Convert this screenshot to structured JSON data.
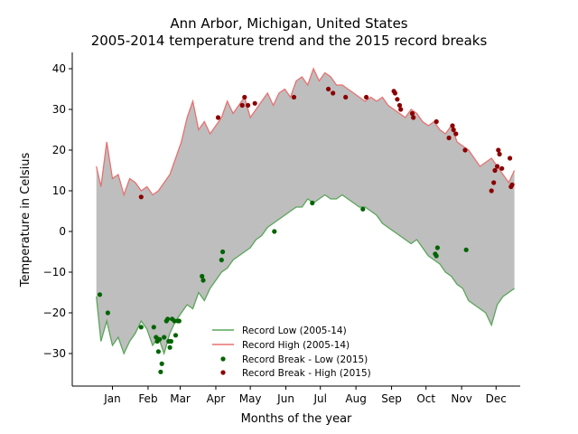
{
  "chart_data": {
    "type": "line",
    "title_line1": "Ann Arbor, Michigan, United States",
    "title_line2": "2005-2014 temperature trend and the 2015 record breaks",
    "xlabel": "Months of the year",
    "ylabel": "Temperature in Celsius",
    "xlim": [
      -20,
      370
    ],
    "ylim": [
      -38,
      44
    ],
    "x_ticks": [
      {
        "day": 15,
        "label": "Jan"
      },
      {
        "day": 46,
        "label": "Feb"
      },
      {
        "day": 74,
        "label": "Mar"
      },
      {
        "day": 105,
        "label": "Apr"
      },
      {
        "day": 135,
        "label": "May"
      },
      {
        "day": 166,
        "label": "Jun"
      },
      {
        "day": 196,
        "label": "Jul"
      },
      {
        "day": 227,
        "label": "Aug"
      },
      {
        "day": 258,
        "label": "Sep"
      },
      {
        "day": 288,
        "label": "Oct"
      },
      {
        "day": 319,
        "label": "Nov"
      },
      {
        "day": 349,
        "label": "Dec"
      }
    ],
    "y_ticks": [
      -30,
      -20,
      -10,
      0,
      10,
      20,
      30,
      40
    ],
    "fill_between": {
      "color": "#bebebe"
    },
    "series": [
      {
        "name": "Record Low (2005-14)",
        "color": "#5aa55a",
        "kind": "line",
        "x": [
          1,
          5,
          10,
          15,
          20,
          25,
          30,
          35,
          40,
          45,
          50,
          55,
          60,
          65,
          70,
          75,
          80,
          85,
          90,
          95,
          100,
          105,
          110,
          115,
          120,
          125,
          130,
          135,
          140,
          145,
          150,
          155,
          160,
          165,
          170,
          175,
          180,
          185,
          190,
          195,
          200,
          205,
          210,
          215,
          220,
          225,
          230,
          235,
          240,
          245,
          250,
          255,
          260,
          265,
          270,
          275,
          280,
          285,
          290,
          295,
          300,
          305,
          310,
          315,
          320,
          325,
          330,
          335,
          340,
          345,
          350,
          355,
          360,
          365
        ],
        "y": [
          -16,
          -27,
          -22,
          -28,
          -26,
          -30,
          -27,
          -25,
          -22,
          -24,
          -28,
          -26,
          -30,
          -25,
          -22,
          -20,
          -18,
          -19,
          -15,
          -17,
          -14,
          -12,
          -10,
          -9,
          -7,
          -6,
          -5,
          -4,
          -2,
          -1,
          1,
          2,
          3,
          4,
          5,
          6,
          6,
          8,
          7,
          8,
          9,
          8,
          8,
          9,
          8,
          7,
          6,
          6,
          5,
          4,
          2,
          1,
          0,
          -1,
          -2,
          -3,
          -2,
          -4,
          -6,
          -7,
          -8,
          -10,
          -11,
          -13,
          -14,
          -17,
          -18,
          -19,
          -20,
          -23,
          -18,
          -16,
          -15,
          -14
        ]
      },
      {
        "name": "Record High (2005-14)",
        "color": "#e87070",
        "kind": "line",
        "x": [
          1,
          5,
          10,
          15,
          20,
          25,
          30,
          35,
          40,
          45,
          50,
          55,
          60,
          65,
          70,
          75,
          80,
          85,
          90,
          95,
          100,
          105,
          110,
          115,
          120,
          125,
          130,
          135,
          140,
          145,
          150,
          155,
          160,
          165,
          170,
          175,
          180,
          185,
          190,
          195,
          200,
          205,
          210,
          215,
          220,
          225,
          230,
          235,
          240,
          245,
          250,
          255,
          260,
          265,
          270,
          275,
          280,
          285,
          290,
          295,
          300,
          305,
          310,
          315,
          320,
          325,
          330,
          335,
          340,
          345,
          350,
          355,
          360,
          365
        ],
        "y": [
          16,
          11,
          22,
          13,
          14,
          9,
          13,
          12,
          10,
          11,
          9,
          10,
          12,
          14,
          18,
          22,
          28,
          32,
          25,
          27,
          24,
          26,
          28,
          32,
          29,
          31,
          33,
          28,
          30,
          32,
          34,
          31,
          34,
          35,
          33,
          37,
          38,
          36,
          40,
          37,
          39,
          38,
          36,
          36,
          35,
          34,
          33,
          32,
          33,
          32,
          33,
          31,
          30,
          29,
          28,
          30,
          29,
          27,
          26,
          27,
          25,
          24,
          26,
          22,
          21,
          20,
          18,
          16,
          17,
          18,
          16,
          14,
          12,
          15
        ]
      },
      {
        "name": "Record Break - Low (2015)",
        "color": "#006400",
        "kind": "scatter",
        "x": [
          4,
          11,
          40,
          51,
          53,
          54,
          55,
          56,
          57,
          58,
          60,
          62,
          63,
          64,
          65,
          66,
          67,
          69,
          70,
          72,
          73,
          93,
          94,
          110,
          111,
          156,
          189,
          233,
          296,
          297,
          298,
          323
        ],
        "y": [
          -15.5,
          -20,
          -23.5,
          -23.5,
          -26,
          -27,
          -29.5,
          -26.5,
          -34.5,
          -32.5,
          -26,
          -22,
          -21.5,
          -27,
          -28.5,
          -27,
          -21.5,
          -22,
          -25.5,
          -22,
          -22,
          -11,
          -12,
          -7,
          -5,
          0,
          7,
          5.5,
          -5.5,
          -6,
          -4,
          -4.5
        ]
      },
      {
        "name": "Record Break - High (2015)",
        "color": "#8b0000",
        "kind": "scatter",
        "x": [
          40,
          107,
          128,
          130,
          133,
          139,
          173,
          203,
          207,
          218,
          236,
          260,
          261,
          263,
          265,
          266,
          276,
          277,
          297,
          308,
          311,
          312,
          314,
          322,
          345,
          347,
          348,
          350,
          351,
          352,
          354,
          361,
          362,
          363
        ],
        "y": [
          8.5,
          28,
          31,
          33,
          31,
          31.5,
          33,
          35,
          34,
          33,
          33,
          34.5,
          34,
          32.5,
          31,
          30,
          29,
          28,
          27,
          23,
          26,
          25,
          24,
          20,
          10,
          12,
          15,
          16,
          20,
          19,
          15.5,
          18,
          11,
          11.5
        ]
      }
    ],
    "legend": {
      "placement": "lower-center"
    }
  }
}
